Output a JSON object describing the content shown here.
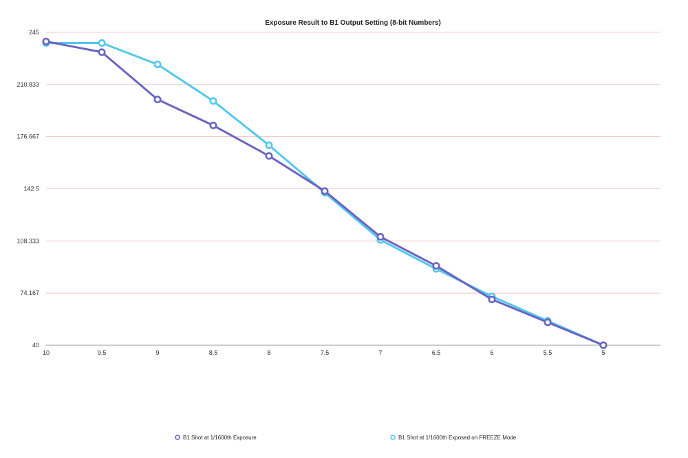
{
  "chart_data": {
    "type": "line",
    "title": "Exposure Result to B1 Output Setting  (8-bit Numbers)",
    "xlabel": "",
    "ylabel": "",
    "x": [
      "10",
      "9.5",
      "9",
      "8.5",
      "8",
      "7.5",
      "7",
      "6.5",
      "6",
      "5.5",
      "5"
    ],
    "yticks": [
      "40",
      "74.167",
      "108.333",
      "142.5",
      "176.667",
      "210.833",
      "245"
    ],
    "ylim": [
      40,
      245
    ],
    "grid": "horizontal",
    "legend_position": "bottom",
    "series": [
      {
        "name": "B1 Shot at 1/1600th Exposure",
        "color": "#6a64c2",
        "values": [
          239,
          232,
          201,
          184,
          164,
          141,
          111,
          92,
          70,
          55,
          40
        ]
      },
      {
        "name": "B1 Shot at 1/1600th Exposed on FREEZE Mode",
        "color": "#52c8ec",
        "values": [
          238,
          238,
          224,
          200,
          171,
          140,
          109,
          90,
          72,
          56,
          40
        ]
      }
    ]
  }
}
